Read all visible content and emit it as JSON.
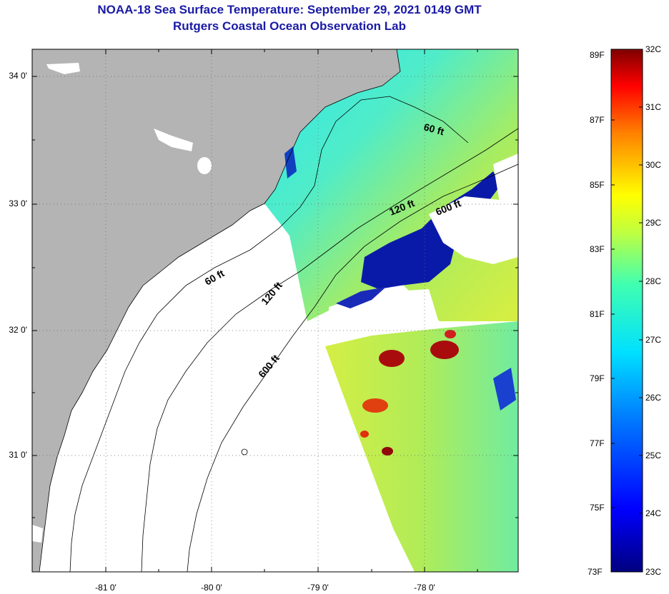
{
  "title_line1": "NOAA-18 Sea Surface Temperature:  September 29, 2021 0149 GMT",
  "title_line2": "Rutgers Coastal Ocean Observation Lab",
  "lat_labels": [
    "34 0'",
    "33 0'",
    "32 0'",
    "31 0'"
  ],
  "lon_labels": [
    "-81 0'",
    "-80 0'",
    "-79 0'",
    "-78 0'"
  ],
  "contours": {
    "c60_north": "60 ft",
    "c120_north": "120 ft",
    "c600_north": "600 ft",
    "c60_south": "60 ft",
    "c120_south": "120 ft",
    "c600_south": "600 ft"
  },
  "colorbar": {
    "fahrenheit": [
      "89F",
      "87F",
      "85F",
      "83F",
      "81F",
      "79F",
      "77F",
      "75F",
      "73F"
    ],
    "celsius": [
      "32C",
      "31C",
      "30C",
      "29C",
      "28C",
      "27C",
      "26C",
      "25C",
      "24C",
      "23C"
    ]
  },
  "colors": {
    "land": "#b4b4b4",
    "title": "#1a1aa6"
  }
}
